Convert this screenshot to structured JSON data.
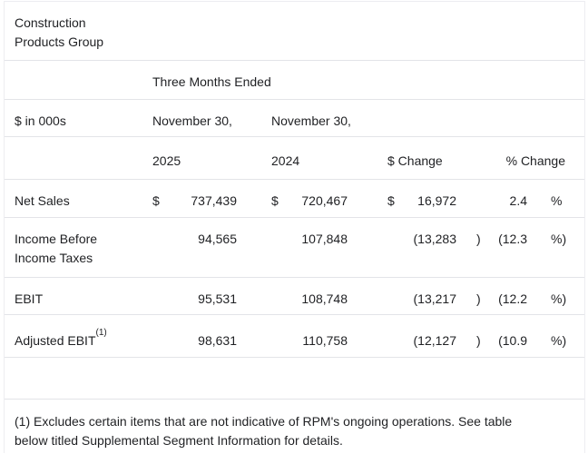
{
  "table": {
    "title": "Construction Products Group",
    "period_header": "Three Months Ended",
    "units_label": "$ in 000s",
    "date_2025": "November 30,",
    "date_2024": "November 30,",
    "col_2025": "2025",
    "col_2024": "2024",
    "col_dollar_change": "$ Change",
    "col_pct_change": "% Change",
    "rows": [
      {
        "label": "Net Sales",
        "label_sup": "",
        "cur_2025": "$",
        "val_2025": "737,439",
        "cur_2024": "$",
        "val_2024": "720,467",
        "cur_change": "$",
        "val_change": "16,972",
        "change_close": "",
        "pct_change": "2.4",
        "pct_symbol": "%"
      },
      {
        "label": "Income Before Income Taxes",
        "label_sup": "",
        "cur_2025": "",
        "val_2025": "94,565",
        "cur_2024": "",
        "val_2024": "107,848",
        "cur_change": "",
        "val_change": "(13,283",
        "change_close": ")",
        "pct_change": "(12.3",
        "pct_symbol": "%)"
      },
      {
        "label": "EBIT",
        "label_sup": "",
        "cur_2025": "",
        "val_2025": "95,531",
        "cur_2024": "",
        "val_2024": "108,748",
        "cur_change": "",
        "val_change": "(13,217",
        "change_close": ")",
        "pct_change": "(12.2",
        "pct_symbol": "%)"
      },
      {
        "label": "Adjusted EBIT",
        "label_sup": "(1)",
        "cur_2025": "",
        "val_2025": "98,631",
        "cur_2024": "",
        "val_2024": "110,758",
        "cur_change": "",
        "val_change": "(12,127",
        "change_close": ")",
        "pct_change": "(10.9",
        "pct_symbol": "%)"
      }
    ],
    "footnote_lines": [
      "(1) Excludes certain items that are not indicative of RPM's ongoing operations. See table",
      "below titled Supplemental Segment Information for details."
    ]
  }
}
